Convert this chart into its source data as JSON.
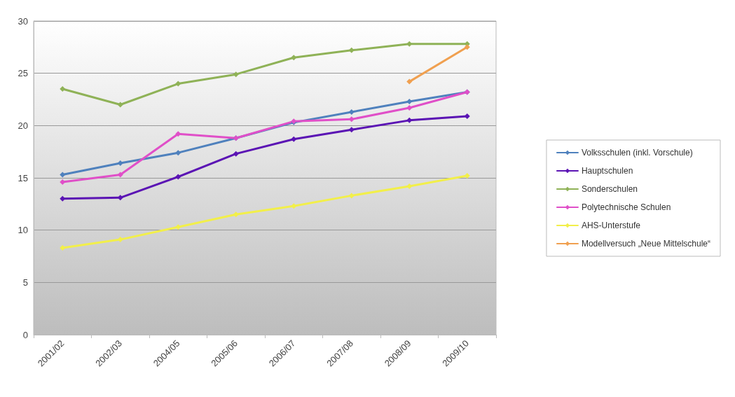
{
  "chart_data": {
    "type": "line",
    "categories": [
      "2001/02",
      "2002/03",
      "2004/05",
      "2005/06",
      "2006/07",
      "2007/08",
      "2008/09",
      "2009/10"
    ],
    "series": [
      {
        "name": "Volksschulen (inkl. Vorschule)",
        "color": "#4f81bd",
        "values": [
          15.3,
          16.4,
          17.4,
          18.8,
          20.3,
          21.3,
          22.3,
          23.2
        ]
      },
      {
        "name": "Hauptschulen",
        "color": "#5b14b4",
        "values": [
          13.0,
          13.1,
          15.1,
          17.3,
          18.7,
          19.6,
          20.5,
          20.9
        ]
      },
      {
        "name": "Sonderschulen",
        "color": "#8fb257",
        "values": [
          23.5,
          22.0,
          24.0,
          24.9,
          26.5,
          27.2,
          27.8,
          27.8
        ]
      },
      {
        "name": "Polytechnische Schulen",
        "color": "#e04fc8",
        "values": [
          14.6,
          15.3,
          19.2,
          18.8,
          20.4,
          20.6,
          21.7,
          23.2
        ]
      },
      {
        "name": "AHS-Unterstufe",
        "color": "#f2ef4a",
        "values": [
          8.3,
          9.1,
          10.3,
          11.5,
          12.3,
          13.3,
          14.2,
          15.2
        ]
      },
      {
        "name": "Modellversuch „Neue Mittelschule“",
        "color": "#f0a050",
        "values": [
          null,
          null,
          null,
          null,
          null,
          null,
          24.2,
          27.5
        ]
      }
    ],
    "ylim": [
      0,
      30
    ],
    "yticks": [
      0,
      5,
      10,
      15,
      20,
      25,
      30
    ],
    "grid": "y",
    "legend": "right",
    "marker": "diamond",
    "line_style": "solid"
  }
}
